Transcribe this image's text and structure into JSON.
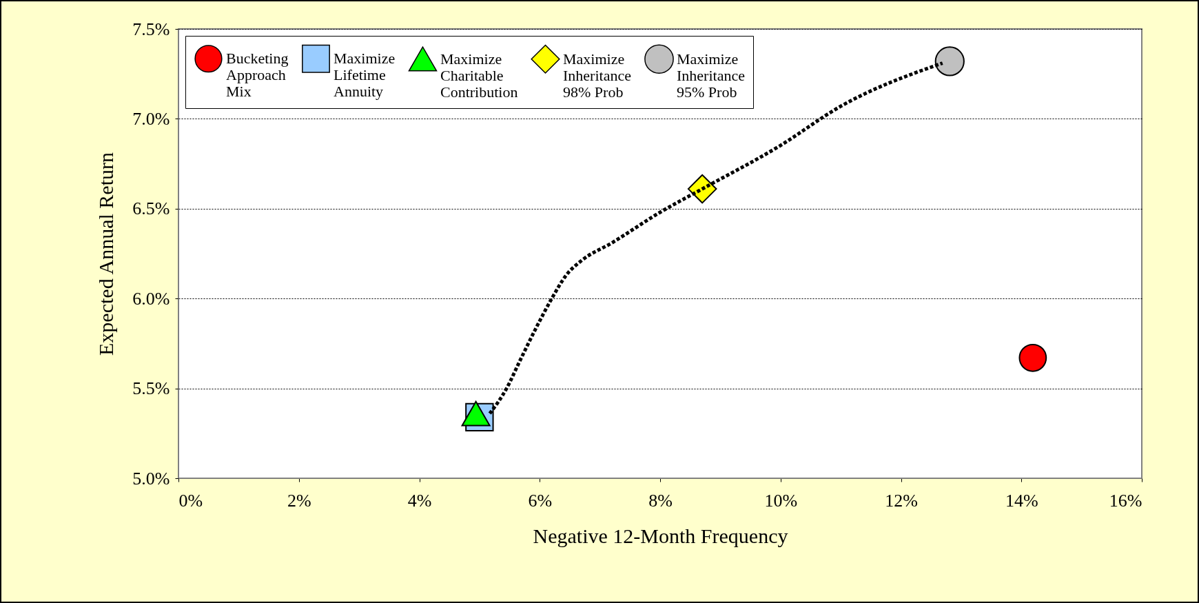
{
  "chart_data": {
    "type": "scatter",
    "xlabel": "Negative 12-Month Frequency",
    "ylabel": "Expected Annual Return",
    "xlim": [
      0,
      16
    ],
    "xticks": [
      {
        "value": 0,
        "label": "0%"
      },
      {
        "value": 2,
        "label": "2%"
      },
      {
        "value": 4,
        "label": "4%"
      },
      {
        "value": 6,
        "label": "6%"
      },
      {
        "value": 8,
        "label": "8%"
      },
      {
        "value": 10,
        "label": "10%"
      },
      {
        "value": 12,
        "label": "12%"
      },
      {
        "value": 14,
        "label": "14%"
      },
      {
        "value": 16,
        "label": "16%"
      }
    ],
    "ylim": [
      5.0,
      7.5
    ],
    "yticks": [
      {
        "value": 5.0,
        "label": "5.0%"
      },
      {
        "value": 5.5,
        "label": "5.5%"
      },
      {
        "value": 6.0,
        "label": "6.0%"
      },
      {
        "value": 6.5,
        "label": "6.5%"
      },
      {
        "value": 7.0,
        "label": "7.0%"
      },
      {
        "value": 7.5,
        "label": "7.5%"
      }
    ],
    "grid": "y",
    "legend": "top left",
    "series": [
      {
        "type": "line",
        "color": "#000000",
        "line_style": "dotted",
        "marker": "none",
        "x": [
          5.17,
          5.45,
          5.68,
          5.93,
          6.2,
          6.44,
          6.69,
          7.2,
          8.0,
          8.7,
          9.99,
          11.0,
          12.69
        ],
        "values": [
          5.36,
          5.5,
          5.66,
          5.83,
          6.0,
          6.13,
          6.21,
          6.31,
          6.48,
          6.61,
          6.85,
          7.07,
          7.31
        ]
      },
      {
        "name": "Bucketing Approach Mix",
        "color": "#ff0000",
        "marker": "circle",
        "x": [
          14.19
        ],
        "values": [
          5.67
        ]
      },
      {
        "name": "Maximize Lifetime Annuity",
        "color": "#99ccff",
        "marker": "square",
        "x": [
          5.0
        ],
        "values": [
          5.34
        ]
      },
      {
        "name": "Maximize Charitable Contribution",
        "color": "#00ff00",
        "marker": "triangle",
        "x": [
          4.94
        ],
        "values": [
          5.36
        ]
      },
      {
        "name": "Maximize Inheritance 98% Prob",
        "color": "#ffff00",
        "marker": "diamond",
        "x": [
          8.7
        ],
        "values": [
          6.61
        ]
      },
      {
        "name": "Maximize Inheritance 95% Prob",
        "color": "#c0c0c0",
        "marker": "circle",
        "x": [
          12.81
        ],
        "values": [
          7.32
        ]
      }
    ]
  }
}
